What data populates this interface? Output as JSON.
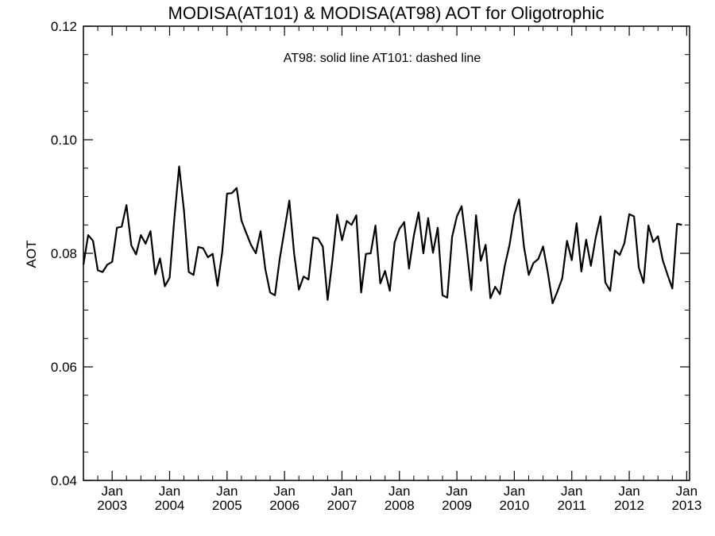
{
  "chart_data": {
    "type": "line",
    "title": "MODISA(AT101) & MODISA(AT98)  AOT for Oligotrophic",
    "annotation": "AT98: solid line   AT101: dashed line",
    "ylabel": "AOT",
    "xlabel": "",
    "xlim": [
      2002.5,
      2013.05
    ],
    "ylim": [
      0.04,
      0.12
    ],
    "yticks": [
      0.04,
      0.06,
      0.08,
      0.1,
      0.12
    ],
    "ytick_labels": [
      "0.04",
      "0.06",
      "0.08",
      "0.10",
      "0.12"
    ],
    "xticks": [
      {
        "month": "Jan",
        "year": "2003",
        "x": 2003
      },
      {
        "month": "Jan",
        "year": "2004",
        "x": 2004
      },
      {
        "month": "Jan",
        "year": "2005",
        "x": 2005
      },
      {
        "month": "Jan",
        "year": "2006",
        "x": 2006
      },
      {
        "month": "Jan",
        "year": "2007",
        "x": 2007
      },
      {
        "month": "Jan",
        "year": "2008",
        "x": 2008
      },
      {
        "month": "Jan",
        "year": "2009",
        "x": 2009
      },
      {
        "month": "Jan",
        "year": "2010",
        "x": 2010
      },
      {
        "month": "Jan",
        "year": "2011",
        "x": 2011
      },
      {
        "month": "Jan",
        "year": "2012",
        "x": 2012
      },
      {
        "month": "Jan",
        "year": "2013",
        "x": 2013
      }
    ],
    "grid": false,
    "series": [
      {
        "style": "solid",
        "x0": 2002.5,
        "dx": 0.08333333,
        "values": [
          0.078,
          0.0832,
          0.0822,
          0.077,
          0.0767,
          0.078,
          0.0785,
          0.0845,
          0.0847,
          0.0885,
          0.0814,
          0.0798,
          0.0832,
          0.0817,
          0.0839,
          0.0763,
          0.0791,
          0.0742,
          0.0757,
          0.0862,
          0.0953,
          0.0875,
          0.0767,
          0.0762,
          0.0811,
          0.0809,
          0.0793,
          0.0799,
          0.0743,
          0.0803,
          0.0905,
          0.0906,
          0.0915,
          0.0858,
          0.0836,
          0.0815,
          0.08,
          0.0839,
          0.0772,
          0.0731,
          0.0726,
          0.079,
          0.0841,
          0.0893,
          0.08,
          0.0736,
          0.0759,
          0.0754,
          0.0828,
          0.0826,
          0.0812,
          0.0718,
          0.0788,
          0.0868,
          0.0823,
          0.0857,
          0.085,
          0.0867,
          0.0731,
          0.0799,
          0.08,
          0.0849,
          0.0747,
          0.0769,
          0.0734,
          0.0819,
          0.0843,
          0.0855,
          0.0773,
          0.0831,
          0.0872,
          0.08,
          0.0862,
          0.0801,
          0.0845,
          0.0726,
          0.0722,
          0.0829,
          0.0865,
          0.0883,
          0.0813,
          0.0735,
          0.0867,
          0.0787,
          0.0815,
          0.0721,
          0.0741,
          0.0728,
          0.0778,
          0.0815,
          0.0868,
          0.0895,
          0.0812,
          0.0762,
          0.0783,
          0.079,
          0.0812,
          0.0766,
          0.0712,
          0.0733,
          0.0756,
          0.0822,
          0.0788,
          0.0853,
          0.0768,
          0.0824,
          0.0778,
          0.0828,
          0.0865,
          0.0749,
          0.0734,
          0.0805,
          0.0797,
          0.0818,
          0.0869,
          0.0865,
          0.0775,
          0.0748,
          0.0849,
          0.082,
          0.083,
          0.0788,
          0.0762,
          0.0738,
          0.0852,
          0.085
        ]
      }
    ]
  }
}
